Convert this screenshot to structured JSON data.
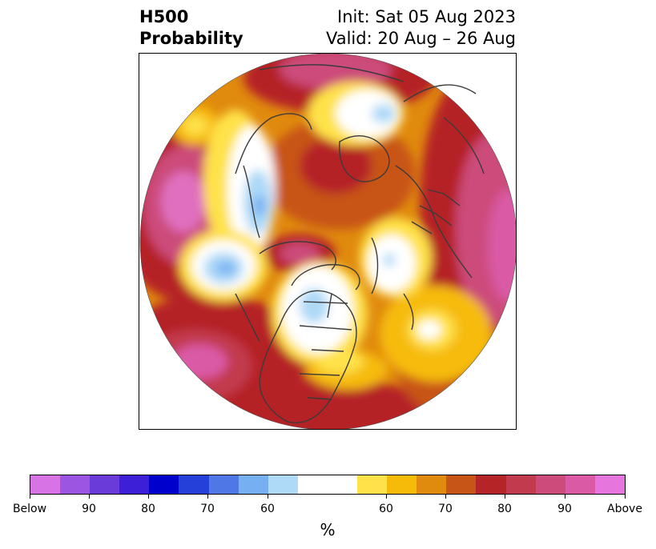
{
  "header": {
    "title_line1": "H500",
    "title_line2": "Probability",
    "init_text": "Init: Sat 05 Aug 2023",
    "valid_text": "Valid: 20 Aug – 26 Aug"
  },
  "map": {
    "projection": "north-polar-stereographic",
    "features": [
      "coastlines",
      "country-borders",
      "us-state-borders",
      "canada-province-borders"
    ]
  },
  "colorbar": {
    "unit": "%",
    "colors": [
      "#d873e6",
      "#9b55e0",
      "#6a3bd8",
      "#3c1fd6",
      "#0000cc",
      "#2440d8",
      "#4f78e6",
      "#76b0f2",
      "#aed9f7",
      "#ffffff",
      "#ffe24a",
      "#f6bb08",
      "#e08a0e",
      "#c85518",
      "#b52427",
      "#c23a4e",
      "#cc4b7a",
      "#da5aa6",
      "#e676dd"
    ],
    "tick_labels": [
      "Below",
      "90",
      "80",
      "70",
      "60",
      "60",
      "70",
      "80",
      "90",
      "Above"
    ]
  }
}
